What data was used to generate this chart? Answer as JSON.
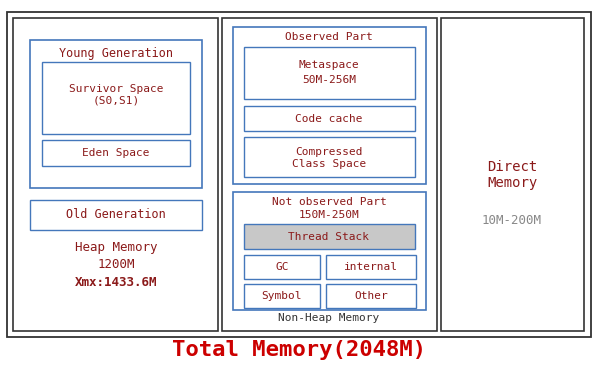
{
  "title": "Total Memory(2048M)",
  "title_color": "#cc0000",
  "title_fontsize": 16,
  "bg_color": "#ffffff",
  "border_color": "#444444",
  "box_blue": "#4477bb",
  "text_red": "#8b1a1a",
  "text_gray": "#888888",
  "text_dark": "#333333",
  "thread_stack_bg": "#c8c8c8",
  "figsize": [
    5.98,
    3.73
  ],
  "dpi": 100,
  "heap_memory_label": "Heap Memory",
  "heap_memory_val": "1200M",
  "heap_xmx": "Xmx:1433.6M",
  "observed_part": "Observed Part",
  "metaspace": "Metaspace",
  "metaspace_val": "50M-256M",
  "code_cache": "Code cache",
  "compressed": "Compressed\nClass Space",
  "not_observed": "Not observed Part",
  "not_observed_val": "150M-250M",
  "thread_stack": "Thread Stack",
  "gc": "GC",
  "internal": "internal",
  "symbol": "Symbol",
  "other": "Other",
  "non_heap": "Non-Heap Memory",
  "direct": "Direct\nMemory",
  "direct_val": "10M-200M",
  "young_gen": "Young Generation",
  "survivor": "Survivor Space\n(S0,S1)",
  "eden": "Eden Space",
  "old_gen": "Old Generation"
}
